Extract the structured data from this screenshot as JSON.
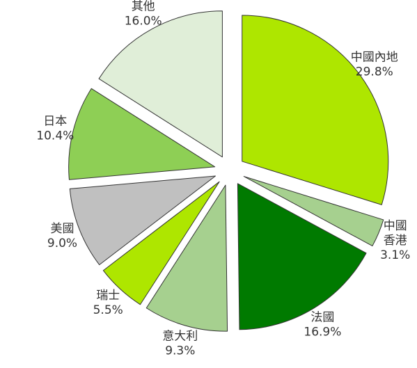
{
  "chart_data": {
    "type": "pie",
    "exploded": true,
    "slices": [
      {
        "name": "中國內地",
        "label_lines": [
          "中國內地"
        ],
        "value": 29.8,
        "value_label": "29.8%",
        "color": "#aee600"
      },
      {
        "name": "中國香港",
        "label_lines": [
          "中國",
          "香港"
        ],
        "value": 3.1,
        "value_label": "3.1%",
        "color": "#a6d08f"
      },
      {
        "name": "法國",
        "label_lines": [
          "法國"
        ],
        "value": 16.9,
        "value_label": "16.9%",
        "color": "#007a00"
      },
      {
        "name": "意大利",
        "label_lines": [
          "意大利"
        ],
        "value": 9.3,
        "value_label": "9.3%",
        "color": "#a6d08f"
      },
      {
        "name": "瑞士",
        "label_lines": [
          "瑞士"
        ],
        "value": 5.5,
        "value_label": "5.5%",
        "color": "#aee600"
      },
      {
        "name": "美國",
        "label_lines": [
          "美國"
        ],
        "value": 9.0,
        "value_label": "9.0%",
        "color": "#c0c0c0"
      },
      {
        "name": "日本",
        "label_lines": [
          "日本"
        ],
        "value": 10.4,
        "value_label": "10.4%",
        "color": "#8ecf55"
      },
      {
        "name": "其他",
        "label_lines": [
          "其他"
        ],
        "value": 16.0,
        "value_label": "16.0%",
        "color": "#e0eed8"
      }
    ]
  }
}
